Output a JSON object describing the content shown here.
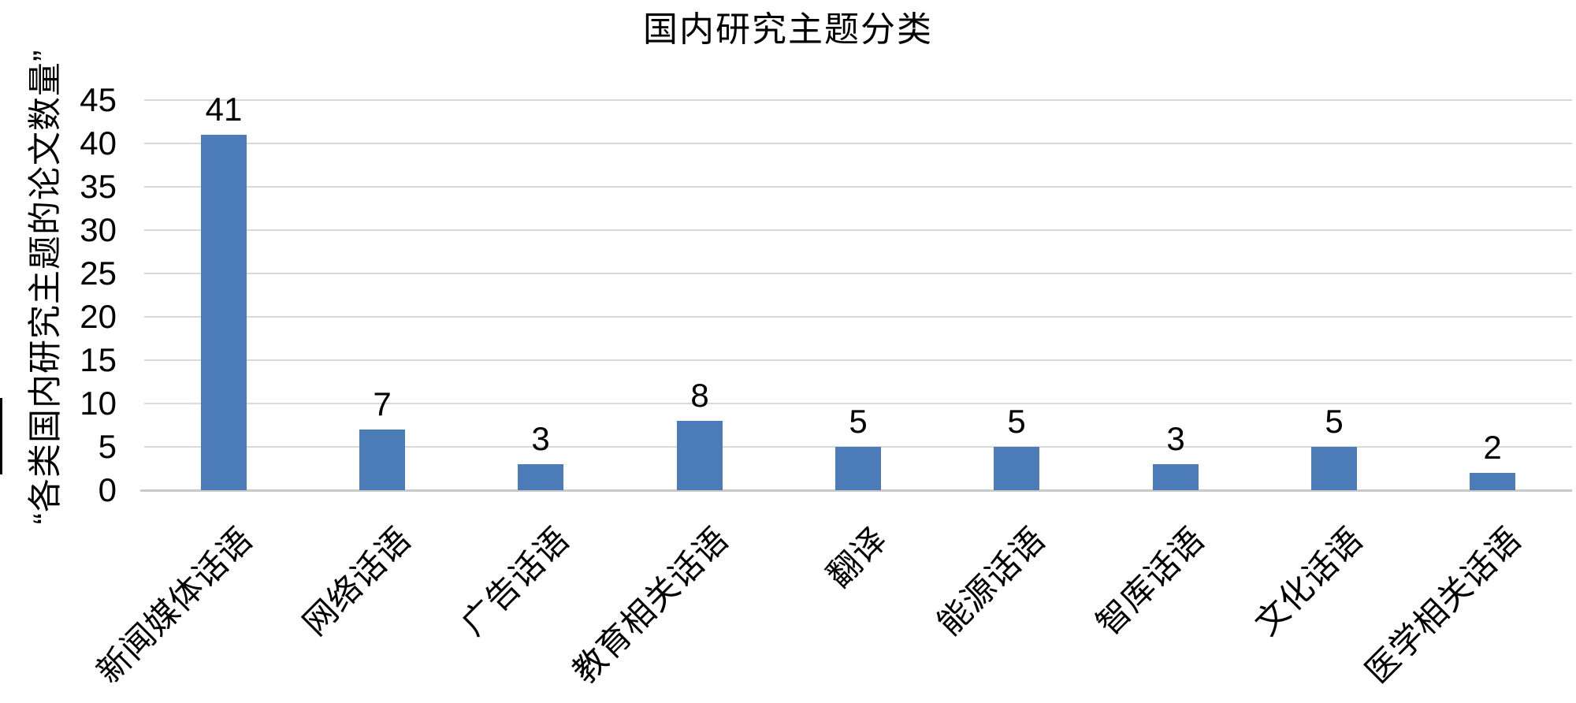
{
  "chart_data": {
    "type": "bar",
    "title": "国内研究主题分类",
    "ylabel": "“各类国内研究主题的论文数量”",
    "xlabel": "",
    "categories": [
      "新闻媒体话语",
      "网络话语",
      "广告话语",
      "教育相关话语",
      "翻译",
      "能源话语",
      "智库话语",
      "文化话语",
      "医学相关话语"
    ],
    "values": [
      41,
      7,
      3,
      8,
      5,
      5,
      3,
      5,
      2
    ],
    "yticks": [
      0,
      5,
      10,
      15,
      20,
      25,
      30,
      35,
      40,
      45
    ],
    "ylim": [
      0,
      45
    ],
    "grid": true,
    "legend": null,
    "colors": {
      "bar": "#4C7CB8",
      "gridline": "#D9D9D9",
      "axis_line": "#C9C9C9",
      "text": "#000000"
    }
  }
}
